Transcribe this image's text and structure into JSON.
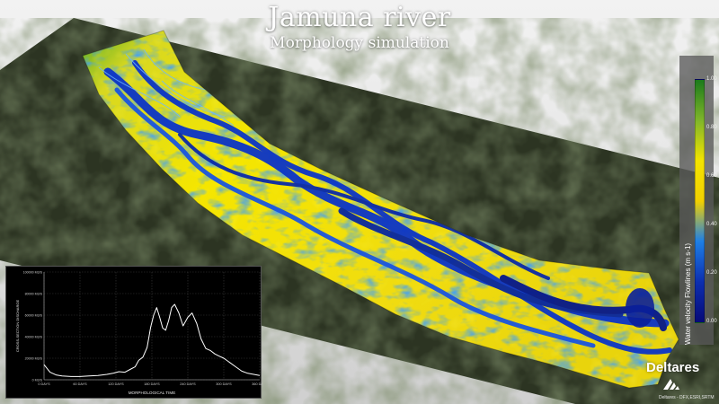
{
  "header": {
    "title": "Jamuna river",
    "subtitle": "Morphology simulation"
  },
  "legend": {
    "label": "Water velocity Flowlines (m s-1)",
    "ticks": [
      "1.00",
      "0.80",
      "0.60",
      "0.40",
      "0.20",
      "0.00"
    ],
    "colors": [
      "#1b7a1b",
      "#7fb52a",
      "#f4e400",
      "#f2d000",
      "#1e7fe6",
      "#0d2fb0",
      "#060a78"
    ]
  },
  "chart_data": {
    "type": "line",
    "title": "",
    "ylabel": "CROSS-SECTION DISCHARGE",
    "xlabel": "MORPHOLOGICAL TIME",
    "x_ticks": [
      "0 DAYS",
      "60 DAYS",
      "120 DAYS",
      "180 DAYS",
      "240 DAYS",
      "300 DAYS",
      "360 DAYS"
    ],
    "y_ticks": [
      "0 M3/S",
      "20000 M3/S",
      "40000 M3/S",
      "60000 M3/S",
      "80000 M3/S",
      "100000 M3/S"
    ],
    "xlim": [
      0,
      360
    ],
    "ylim": [
      0,
      100000
    ],
    "grid": true,
    "series": [
      {
        "x": [
          0,
          10,
          20,
          30,
          45,
          60,
          75,
          90,
          105,
          115,
          125,
          135,
          145,
          152,
          158,
          165,
          172,
          178,
          183,
          188,
          193,
          198,
          203,
          208,
          213,
          218,
          225,
          232,
          240,
          247,
          255,
          262,
          270,
          278,
          285,
          292,
          300,
          310,
          320,
          330,
          340,
          350,
          360
        ],
        "values": [
          14000,
          7000,
          4500,
          3500,
          3000,
          3000,
          3500,
          4000,
          5000,
          6000,
          7500,
          7000,
          10000,
          12000,
          18000,
          21000,
          30000,
          49000,
          60000,
          67000,
          58000,
          48000,
          46000,
          55000,
          67000,
          70000,
          62000,
          50000,
          58000,
          62000,
          52000,
          38000,
          29000,
          27000,
          24000,
          22000,
          20000,
          16000,
          12000,
          8000,
          6000,
          5000,
          4000
        ]
      }
    ]
  },
  "brand": {
    "name": "Deltares",
    "credit": "Deltares - DFX,ESRI,SRTM"
  }
}
